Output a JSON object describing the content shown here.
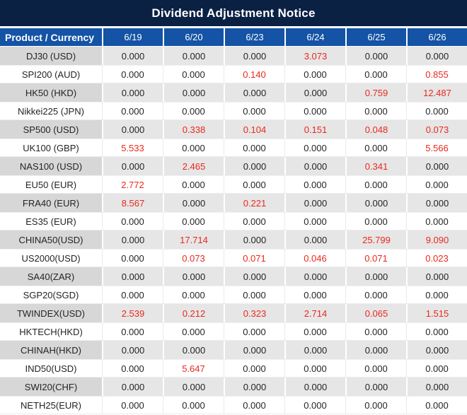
{
  "title": "Dividend Adjustment Notice",
  "colors": {
    "title_bg": "#0B2144",
    "header_bg": "#1453A5",
    "header_text": "#FFFFFF",
    "gray_row_product_bg": "#D7D7D7",
    "gray_row_cell_bg": "#E6E6E6",
    "white_row_bg": "#FFFFFF",
    "value_text": "#242424",
    "red_value": "#E9291D"
  },
  "table": {
    "header": {
      "product": "Product / Currency",
      "dates": [
        "6/19",
        "6/20",
        "6/23",
        "6/24",
        "6/25",
        "6/26"
      ]
    },
    "rows": [
      {
        "product": "DJ30 (USD)",
        "values": [
          "0.000",
          "0.000",
          "0.000",
          "3.073",
          "0.000",
          "0.000"
        ],
        "red_indices": [
          3
        ]
      },
      {
        "product": "SPI200 (AUD)",
        "values": [
          "0.000",
          "0.000",
          "0.140",
          "0.000",
          "0.000",
          "0.855"
        ],
        "red_indices": [
          2,
          5
        ]
      },
      {
        "product": "HK50 (HKD)",
        "values": [
          "0.000",
          "0.000",
          "0.000",
          "0.000",
          "0.759",
          "12.487"
        ],
        "red_indices": [
          4,
          5
        ]
      },
      {
        "product": "Nikkei225 (JPN)",
        "values": [
          "0.000",
          "0.000",
          "0.000",
          "0.000",
          "0.000",
          "0.000"
        ],
        "red_indices": []
      },
      {
        "product": "SP500 (USD)",
        "values": [
          "0.000",
          "0.338",
          "0.104",
          "0.151",
          "0.048",
          "0.073"
        ],
        "red_indices": [
          1,
          2,
          3,
          4,
          5
        ]
      },
      {
        "product": "UK100 (GBP)",
        "values": [
          "5.533",
          "0.000",
          "0.000",
          "0.000",
          "0.000",
          "5.566"
        ],
        "red_indices": [
          0,
          5
        ]
      },
      {
        "product": "NAS100 (USD)",
        "values": [
          "0.000",
          "2.465",
          "0.000",
          "0.000",
          "0.341",
          "0.000"
        ],
        "red_indices": [
          1,
          4
        ]
      },
      {
        "product": "EU50 (EUR)",
        "values": [
          "2.772",
          "0.000",
          "0.000",
          "0.000",
          "0.000",
          "0.000"
        ],
        "red_indices": [
          0
        ]
      },
      {
        "product": "FRA40 (EUR)",
        "values": [
          "8.567",
          "0.000",
          "0.221",
          "0.000",
          "0.000",
          "0.000"
        ],
        "red_indices": [
          0,
          2
        ]
      },
      {
        "product": "ES35 (EUR)",
        "values": [
          "0.000",
          "0.000",
          "0.000",
          "0.000",
          "0.000",
          "0.000"
        ],
        "red_indices": []
      },
      {
        "product": "CHINA50(USD)",
        "values": [
          "0.000",
          "17.714",
          "0.000",
          "0.000",
          "25.799",
          "9.090"
        ],
        "red_indices": [
          1,
          4,
          5
        ]
      },
      {
        "product": "US2000(USD)",
        "values": [
          "0.000",
          "0.073",
          "0.071",
          "0.046",
          "0.071",
          "0.023"
        ],
        "red_indices": [
          1,
          2,
          3,
          4,
          5
        ]
      },
      {
        "product": "SA40(ZAR)",
        "values": [
          "0.000",
          "0.000",
          "0.000",
          "0.000",
          "0.000",
          "0.000"
        ],
        "red_indices": []
      },
      {
        "product": "SGP20(SGD)",
        "values": [
          "0.000",
          "0.000",
          "0.000",
          "0.000",
          "0.000",
          "0.000"
        ],
        "red_indices": []
      },
      {
        "product": "TWINDEX(USD)",
        "values": [
          "2.539",
          "0.212",
          "0.323",
          "2.714",
          "0.065",
          "1.515"
        ],
        "red_indices": [
          0,
          1,
          2,
          3,
          4,
          5
        ]
      },
      {
        "product": "HKTECH(HKD)",
        "values": [
          "0.000",
          "0.000",
          "0.000",
          "0.000",
          "0.000",
          "0.000"
        ],
        "red_indices": []
      },
      {
        "product": "CHINAH(HKD)",
        "values": [
          "0.000",
          "0.000",
          "0.000",
          "0.000",
          "0.000",
          "0.000"
        ],
        "red_indices": []
      },
      {
        "product": "IND50(USD)",
        "values": [
          "0.000",
          "5.647",
          "0.000",
          "0.000",
          "0.000",
          "0.000"
        ],
        "red_indices": [
          1
        ]
      },
      {
        "product": "SWI20(CHF)",
        "values": [
          "0.000",
          "0.000",
          "0.000",
          "0.000",
          "0.000",
          "0.000"
        ],
        "red_indices": []
      },
      {
        "product": "NETH25(EUR)",
        "values": [
          "0.000",
          "0.000",
          "0.000",
          "0.000",
          "0.000",
          "0.000"
        ],
        "red_indices": []
      }
    ]
  }
}
